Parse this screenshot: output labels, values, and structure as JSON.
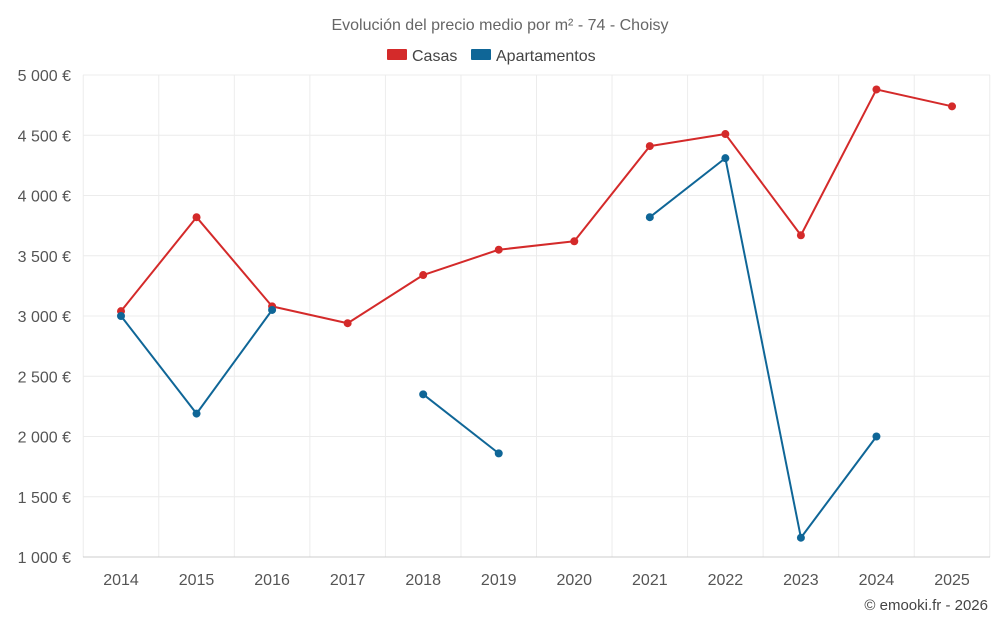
{
  "chart_data": {
    "type": "line",
    "title": "Evolución del precio medio por m² - 74 - Choisy",
    "categories": [
      "2014",
      "2015",
      "2016",
      "2017",
      "2018",
      "2019",
      "2020",
      "2021",
      "2022",
      "2023",
      "2024",
      "2025"
    ],
    "y_ticks": [
      1000,
      1500,
      2000,
      2500,
      3000,
      3500,
      4000,
      4500,
      5000
    ],
    "y_tick_labels": [
      "1 000 €",
      "1 500 €",
      "2 000 €",
      "2 500 €",
      "3 000 €",
      "3 500 €",
      "4 000 €",
      "4 500 €",
      "5 000 €"
    ],
    "ylim": [
      1000,
      5000
    ],
    "legend_position": "top-center",
    "grid": true,
    "series": [
      {
        "name": "Casas",
        "color": "#d42a2a",
        "values": [
          3040,
          3820,
          3080,
          2940,
          3340,
          3550,
          3620,
          4410,
          4510,
          3670,
          4880,
          4740
        ]
      },
      {
        "name": "Apartamentos",
        "color": "#0f6697",
        "values": [
          3000,
          2190,
          3050,
          null,
          2350,
          1860,
          null,
          3820,
          4310,
          1160,
          2000,
          null
        ]
      }
    ],
    "credit": "© emooki.fr - 2026"
  }
}
